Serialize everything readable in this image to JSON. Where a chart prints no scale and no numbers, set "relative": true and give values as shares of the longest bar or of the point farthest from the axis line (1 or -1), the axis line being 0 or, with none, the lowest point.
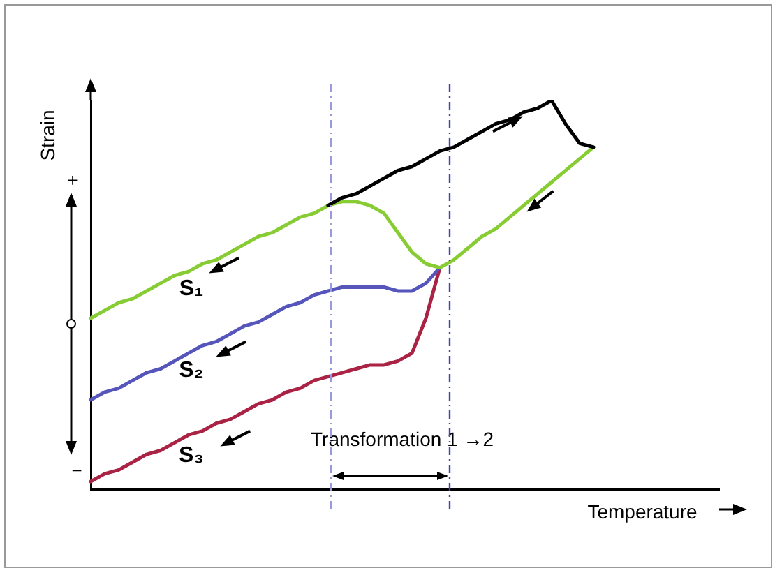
{
  "chart_data": {
    "type": "line",
    "relative": true,
    "xlabel": "Temperature",
    "ylabel": "Strain",
    "legend": false,
    "marker": "none",
    "line_style": "solid",
    "categories": [
      null,
      null,
      null,
      null,
      null,
      null,
      null,
      null,
      null,
      null,
      null,
      null,
      null,
      null,
      null,
      null,
      null,
      null,
      null,
      null,
      null,
      null,
      null,
      null,
      null,
      null,
      null,
      null,
      null,
      null,
      null,
      null,
      null,
      null,
      null,
      null,
      null,
      null,
      null,
      null,
      null,
      null,
      null,
      null,
      null,
      null
    ],
    "series": [
      {
        "color": "#000000",
        "values": [
          null,
          null,
          null,
          null,
          null,
          null,
          null,
          null,
          null,
          null,
          null,
          null,
          null,
          null,
          null,
          null,
          null,
          0.73,
          0.75,
          0.76,
          0.78,
          0.8,
          0.82,
          0.83,
          0.85,
          0.87,
          0.88,
          0.9,
          0.92,
          0.94,
          0.95,
          0.97,
          0.98,
          1,
          0.94,
          0.89,
          0.88,
          null,
          null,
          null,
          null,
          null,
          null,
          null,
          null,
          null
        ]
      },
      {
        "name": "S₁",
        "color": "#88cc33",
        "values": [
          0.44,
          0.46,
          0.48,
          0.49,
          0.51,
          0.53,
          0.55,
          0.56,
          0.58,
          0.59,
          0.61,
          0.63,
          0.65,
          0.66,
          0.68,
          0.7,
          0.71,
          0.73,
          0.74,
          0.74,
          0.73,
          0.71,
          0.66,
          0.61,
          0.58,
          0.57,
          0.59,
          0.62,
          0.65,
          0.67,
          0.7,
          0.73,
          0.76,
          0.79,
          0.82,
          0.85,
          0.88,
          null,
          null,
          null,
          null,
          null,
          null,
          null,
          null,
          null
        ]
      },
      {
        "name": "S₂",
        "color": "#5555bb",
        "values": [
          0.23,
          0.25,
          0.26,
          0.28,
          0.3,
          0.31,
          0.33,
          0.35,
          0.37,
          0.38,
          0.4,
          0.42,
          0.43,
          0.45,
          0.47,
          0.48,
          0.5,
          0.51,
          0.52,
          0.52,
          0.52,
          0.52,
          0.51,
          0.51,
          0.53,
          0.57,
          null,
          null,
          null,
          null,
          null,
          null,
          null,
          null,
          null,
          null,
          null,
          null,
          null,
          null,
          null,
          null,
          null,
          null,
          null,
          null
        ]
      },
      {
        "name": "S₃",
        "color": "#aa2244",
        "values": [
          0.02,
          0.04,
          0.05,
          0.07,
          0.09,
          0.1,
          0.12,
          0.14,
          0.15,
          0.17,
          0.18,
          0.2,
          0.22,
          0.23,
          0.25,
          0.26,
          0.28,
          0.29,
          0.3,
          0.31,
          0.32,
          0.32,
          0.33,
          0.35,
          0.44,
          0.57,
          null,
          null,
          null,
          null,
          null,
          null,
          null,
          null,
          null,
          null,
          null,
          null,
          null,
          null,
          null,
          null,
          null,
          null,
          null,
          null
        ]
      }
    ],
    "annotations": [
      "Transformation 1 →2",
      "+",
      "−"
    ]
  }
}
